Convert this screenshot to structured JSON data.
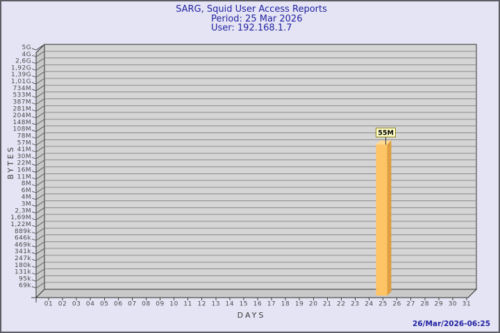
{
  "page": {
    "background": "#E4E4F4",
    "border_color": "#5C5C64"
  },
  "header": {
    "title": "SARG, Squid User Access Reports",
    "period_label": "Period: 25 Mar 2026",
    "user_label": "User: 192.168.1.7"
  },
  "footer": {
    "generated_at": "26/Mar/2026-06:25"
  },
  "chart_data": {
    "type": "bar",
    "title": "SARG, Squid User Access Reports",
    "period": "25 Mar 2026",
    "user": "192.168.1.7",
    "xlabel": "DAYS",
    "ylabel": "BYTES",
    "y_scale": "log",
    "grid": true,
    "y_tick_labels": [
      "5G",
      "4G",
      "2,6G",
      "1,92G",
      "1,39G",
      "1,01G",
      "734M",
      "533M",
      "387M",
      "281M",
      "204M",
      "148M",
      "108M",
      "78M",
      "57M",
      "41M",
      "30M",
      "22M",
      "16M",
      "11M",
      "8M",
      "6M",
      "4M",
      "3M",
      "2,3M",
      "1,69M",
      "1,22M",
      "889k",
      "646k",
      "469k",
      "341k",
      "247k",
      "180k",
      "131k",
      "95k",
      "69k"
    ],
    "x_tick_labels": [
      "01",
      "02",
      "03",
      "04",
      "05",
      "06",
      "07",
      "08",
      "09",
      "10",
      "11",
      "12",
      "13",
      "14",
      "15",
      "16",
      "17",
      "18",
      "19",
      "20",
      "21",
      "22",
      "23",
      "24",
      "25",
      "26",
      "27",
      "28",
      "29",
      "30",
      "31"
    ],
    "bars": [
      {
        "x": "25",
        "value_label": "55M",
        "value_bytes": 55000000
      }
    ],
    "colors": {
      "page_bg": "#E4E4F4",
      "plot_bg": "#D5D5D5",
      "wall": "#C9C9C9",
      "outline": "#2E2E2E",
      "grid": "#8A8A8A",
      "wall_grid": "#606060",
      "tick_text": "#4A4A4A",
      "axis_text": "#3A3A3A",
      "title_text": "#2222A2",
      "bar_front": "#FFC466",
      "bar_side": "#DD9F42",
      "bar_top": "#FFDA90",
      "value_box_bg": "#FFFFC8",
      "value_box_border": "#8A7D1A",
      "value_box_text": "#000000",
      "stem": "#333333"
    }
  }
}
